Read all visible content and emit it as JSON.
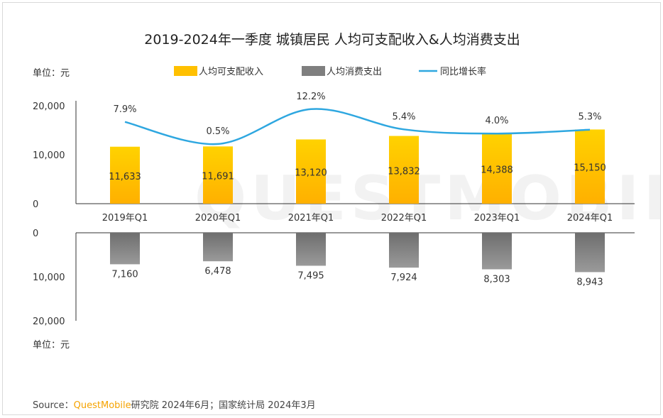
{
  "chart_data": {
    "type": "bar",
    "title": "2019-2024年一季度 城镇居民 人均可支配收入&人均消费支出",
    "unit_label_top": "单位：元",
    "unit_label_bottom": "单位：元",
    "categories": [
      "2019年Q1",
      "2020年Q1",
      "2021年Q1",
      "2022年Q1",
      "2023年Q1",
      "2024年Q1"
    ],
    "series": [
      {
        "name": "人均可支配收入",
        "type": "bar",
        "color": "#ffc000",
        "values": [
          11633,
          11691,
          13120,
          13832,
          14388,
          15150
        ]
      },
      {
        "name": "人均消费支出",
        "type": "bar",
        "color": "#7f7f7f",
        "values": [
          7160,
          6478,
          7495,
          7924,
          8303,
          8943
        ]
      },
      {
        "name": "同比增长率",
        "type": "line",
        "color": "#2ea7e0",
        "values": [
          7.9,
          0.5,
          12.2,
          5.4,
          4.0,
          5.3
        ],
        "labels": [
          "7.9%",
          "0.5%",
          "12.2%",
          "5.4%",
          "4.0%",
          "5.3%"
        ]
      }
    ],
    "income_value_labels": [
      "11,633",
      "11,691",
      "13,120",
      "13,832",
      "14,388",
      "15,150"
    ],
    "expense_value_labels": [
      "7,160",
      "6,478",
      "7,495",
      "7,924",
      "8,303",
      "8,943"
    ],
    "y_top": {
      "ylim": [
        0,
        20000
      ],
      "ticks": [
        0,
        10000,
        20000
      ],
      "tick_labels": [
        "0",
        "10,000",
        "20,000"
      ]
    },
    "y_bottom": {
      "ylim": [
        0,
        20000
      ],
      "ticks": [
        0,
        10000,
        20000
      ],
      "tick_labels": [
        "0",
        "10,000",
        "20,000"
      ]
    },
    "legend_position": "top-center",
    "grid": false
  },
  "watermark": "QUESTMOBILE",
  "source": {
    "prefix": "Source：",
    "brand": "QuestMobile",
    "rest": "研究院 2024年6月；国家统计局 2024年3月"
  }
}
